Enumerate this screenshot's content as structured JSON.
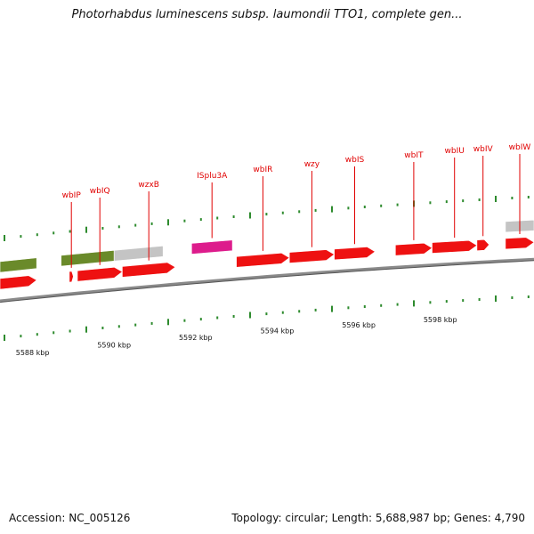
{
  "title": "Photorhabdus luminescens subsp. laumondii TTO1, complete gen...",
  "footer": {
    "accession": "Accession: NC_005126",
    "summary": "Topology: circular; Length: 5,688,987 bp; Genes: 4,790"
  },
  "colors": {
    "gene_red": "#ee1111",
    "gene_olive": "#6a8a2a",
    "gene_gray": "#c4c4c4",
    "gene_magenta": "#dd1c8c",
    "tick_green": "#2e8b2e",
    "backbone": "#8a8a8a",
    "label_red": "#e00000"
  },
  "genes": [
    {
      "name": "wbIP",
      "start_kbp": 5588.9,
      "end_kbp": 5589.0,
      "color": "red",
      "track": "lower"
    },
    {
      "name": "wbIQ",
      "start_kbp": 5589.1,
      "end_kbp": 5590.2,
      "color": "red",
      "track": "lower"
    },
    {
      "name": "wzxB",
      "start_kbp": 5590.2,
      "end_kbp": 5591.5,
      "color": "red",
      "track": "lower"
    },
    {
      "name": "ISplu3A",
      "start_kbp": 5591.9,
      "end_kbp": 5592.9,
      "color": "magenta",
      "track": "upper"
    },
    {
      "name": "wbIR",
      "start_kbp": 5593.0,
      "end_kbp": 5594.3,
      "color": "red",
      "track": "lower"
    },
    {
      "name": "wzy",
      "start_kbp": 5594.3,
      "end_kbp": 5595.4,
      "color": "red",
      "track": "lower"
    },
    {
      "name": "wbIS",
      "start_kbp": 5595.4,
      "end_kbp": 5596.4,
      "color": "red",
      "track": "lower"
    },
    {
      "name": "wbIT",
      "start_kbp": 5596.9,
      "end_kbp": 5597.8,
      "color": "red",
      "track": "lower"
    },
    {
      "name": "wbIU",
      "start_kbp": 5597.8,
      "end_kbp": 5598.9,
      "color": "red",
      "track": "lower"
    },
    {
      "name": "wbIV",
      "start_kbp": 5598.9,
      "end_kbp": 5599.2,
      "color": "red",
      "track": "lower"
    },
    {
      "name": "wbIW",
      "start_kbp": 5599.6,
      "end_kbp": 5600.3,
      "color": "red",
      "track": "lower"
    }
  ],
  "unlabeled_features": [
    {
      "start_kbp": 5587.2,
      "end_kbp": 5588.1,
      "color": "olive",
      "track": "upper"
    },
    {
      "start_kbp": 5588.7,
      "end_kbp": 5590.0,
      "color": "olive",
      "track": "upper"
    },
    {
      "start_kbp": 5590.0,
      "end_kbp": 5591.2,
      "color": "gray",
      "track": "upper"
    },
    {
      "start_kbp": 5599.6,
      "end_kbp": 5600.3,
      "color": "gray",
      "track": "upper"
    },
    {
      "start_kbp": 5587.2,
      "end_kbp": 5588.1,
      "color": "red",
      "track": "lower"
    }
  ],
  "scale_labels": [
    "5588 kbp",
    "5590 kbp",
    "5592 kbp",
    "5594 kbp",
    "5596 kbp",
    "5598 kbp"
  ]
}
